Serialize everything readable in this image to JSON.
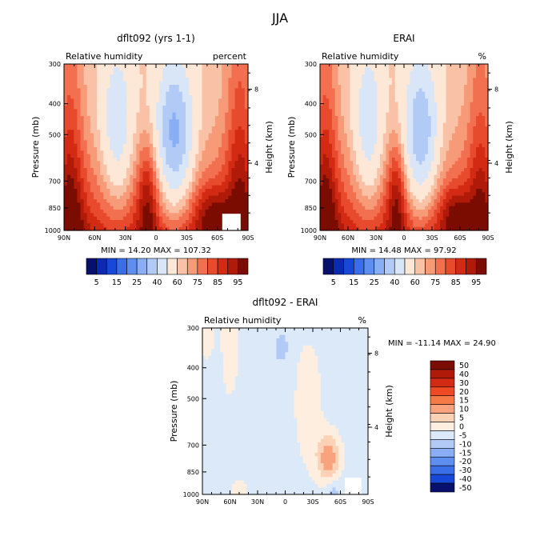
{
  "figure_title": "JJA",
  "chart_data": [
    {
      "type": "heatmap",
      "title": "dflt092 (yrs 1-1)",
      "subtitle_left": "Relative humidity",
      "subtitle_right": "percent",
      "ylabel": "Pressure (mb)",
      "ylabel_right": "Height (km)",
      "x_ticks": [
        "90N",
        "60N",
        "30N",
        "0",
        "30S",
        "60S",
        "90S"
      ],
      "y_ticks": [
        "300",
        "400",
        "500",
        "700",
        "850",
        "1000"
      ],
      "y_ticks_right": [
        "8",
        "4"
      ],
      "min_max_text": "MIN =   14.20   MAX = 107.32",
      "min": 14.2,
      "max": 107.32,
      "colorbar_labels": [
        "5",
        "15",
        "25",
        "40",
        "60",
        "75",
        "85",
        "95"
      ],
      "colorbar_levels": [
        5,
        10,
        15,
        20,
        25,
        30,
        40,
        50,
        60,
        65,
        70,
        75,
        80,
        85,
        90,
        95
      ]
    },
    {
      "type": "heatmap",
      "title": "ERAI",
      "subtitle_left": "Relative humidity",
      "subtitle_right": "%",
      "ylabel": "Pressure (mb)",
      "ylabel_right": "Height (km)",
      "x_ticks": [
        "90N",
        "60N",
        "30N",
        "0",
        "30S",
        "60S",
        "90S"
      ],
      "y_ticks": [
        "300",
        "400",
        "500",
        "700",
        "850",
        "1000"
      ],
      "y_ticks_right": [
        "8",
        "4"
      ],
      "min_max_text": "MIN =   14.48   MAX =  97.92",
      "min": 14.48,
      "max": 97.92,
      "colorbar_labels": [
        "5",
        "15",
        "25",
        "40",
        "60",
        "75",
        "85",
        "95"
      ],
      "colorbar_levels": [
        5,
        10,
        15,
        20,
        25,
        30,
        40,
        50,
        60,
        65,
        70,
        75,
        80,
        85,
        90,
        95
      ]
    },
    {
      "type": "heatmap",
      "title": "dflt092 - ERAI",
      "subtitle_left": "Relative humidity",
      "subtitle_right": "%",
      "ylabel": "Pressure (mb)",
      "ylabel_right": "Height (km)",
      "x_ticks": [
        "90N",
        "60N",
        "30N",
        "0",
        "30S",
        "60S",
        "90S"
      ],
      "y_ticks": [
        "300",
        "400",
        "500",
        "700",
        "850",
        "1000"
      ],
      "y_ticks_right": [
        "8",
        "4"
      ],
      "min_max_text": "MIN = -11.14   MAX =   24.90",
      "min": -11.14,
      "max": 24.9,
      "colorbar_labels": [
        "50",
        "40",
        "30",
        "20",
        "15",
        "10",
        "5",
        "0",
        "-5",
        "-10",
        "-15",
        "-20",
        "-30",
        "-40",
        "-50"
      ]
    }
  ],
  "colors": {
    "rh_scale": [
      "#08106e",
      "#0a2ab0",
      "#1848d8",
      "#3a6ee8",
      "#5e8ef0",
      "#8aaef4",
      "#b2caf6",
      "#d8e6f8",
      "#fde7d7",
      "#f9c2a6",
      "#f79a78",
      "#f27050",
      "#e84a2e",
      "#d32a14",
      "#b01a08",
      "#7a0c02"
    ],
    "diff_scale": [
      "#7a0c02",
      "#b01a08",
      "#d32a14",
      "#f04a24",
      "#f57a48",
      "#f9a37e",
      "#fcd2b6",
      "#fdeee0",
      "#dce9f8",
      "#b2caf6",
      "#8aaef4",
      "#5e8ef0",
      "#3a6ee8",
      "#1848d8",
      "#08106e"
    ]
  }
}
